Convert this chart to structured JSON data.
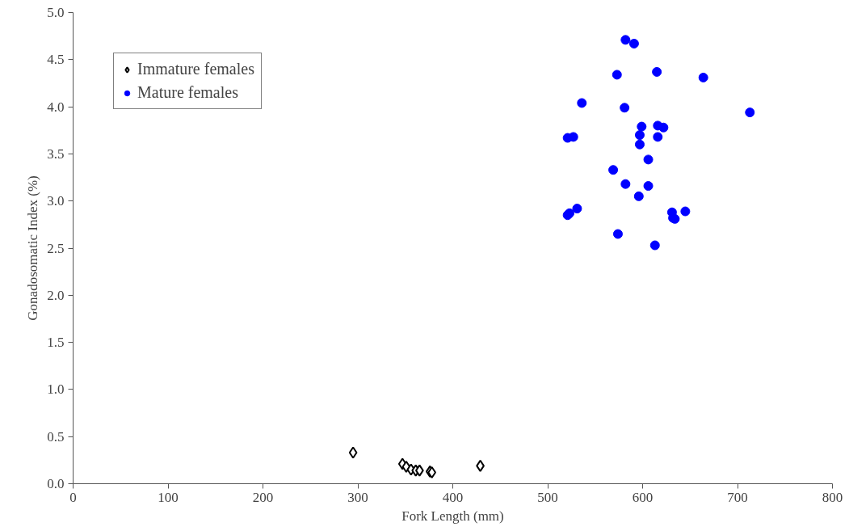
{
  "chart_data": {
    "type": "scatter",
    "xlabel": "Fork Length (mm)",
    "ylabel": "Gonadosomatic Index (%)",
    "xlim": [
      0,
      800
    ],
    "xticks": [
      0,
      100,
      200,
      300,
      400,
      500,
      600,
      700,
      800
    ],
    "ylim": [
      0,
      5
    ],
    "yticks": [
      {
        "value": 0,
        "label": "0.0"
      },
      {
        "value": 0.5,
        "label": "0.5"
      },
      {
        "value": 1,
        "label": "1.0"
      },
      {
        "value": 1.5,
        "label": "1.5"
      },
      {
        "value": 2,
        "label": "2.0"
      },
      {
        "value": 2.5,
        "label": "2.5"
      },
      {
        "value": 3,
        "label": "3.0"
      },
      {
        "value": 3.5,
        "label": "3.5"
      },
      {
        "value": 4,
        "label": "4.0"
      },
      {
        "value": 4.5,
        "label": "4.5"
      },
      {
        "value": 5,
        "label": "5.0"
      }
    ],
    "grid": false,
    "legend": "top left",
    "series": [
      {
        "name": "Immature females",
        "color": "#000000",
        "marker": "diamond",
        "x": [
          295,
          347,
          351,
          356,
          361,
          365,
          376,
          378,
          429
        ],
        "values": [
          0.33,
          0.21,
          0.18,
          0.15,
          0.14,
          0.14,
          0.13,
          0.12,
          0.19
        ]
      },
      {
        "name": "Mature females",
        "color": "#0000ff",
        "marker": "circle",
        "x": [
          582,
          591,
          573,
          615,
          664,
          536,
          581,
          713,
          599,
          616,
          622,
          527,
          521,
          597,
          616,
          597,
          606,
          569,
          582,
          606,
          596,
          531,
          523,
          521,
          631,
          645,
          634,
          632,
          574,
          613
        ],
        "values": [
          4.71,
          4.67,
          4.34,
          4.37,
          4.31,
          4.04,
          3.99,
          3.94,
          3.79,
          3.8,
          3.78,
          3.68,
          3.67,
          3.7,
          3.68,
          3.6,
          3.44,
          3.33,
          3.18,
          3.16,
          3.05,
          2.92,
          2.87,
          2.85,
          2.88,
          2.89,
          2.81,
          2.82,
          2.65,
          2.53
        ]
      }
    ]
  }
}
